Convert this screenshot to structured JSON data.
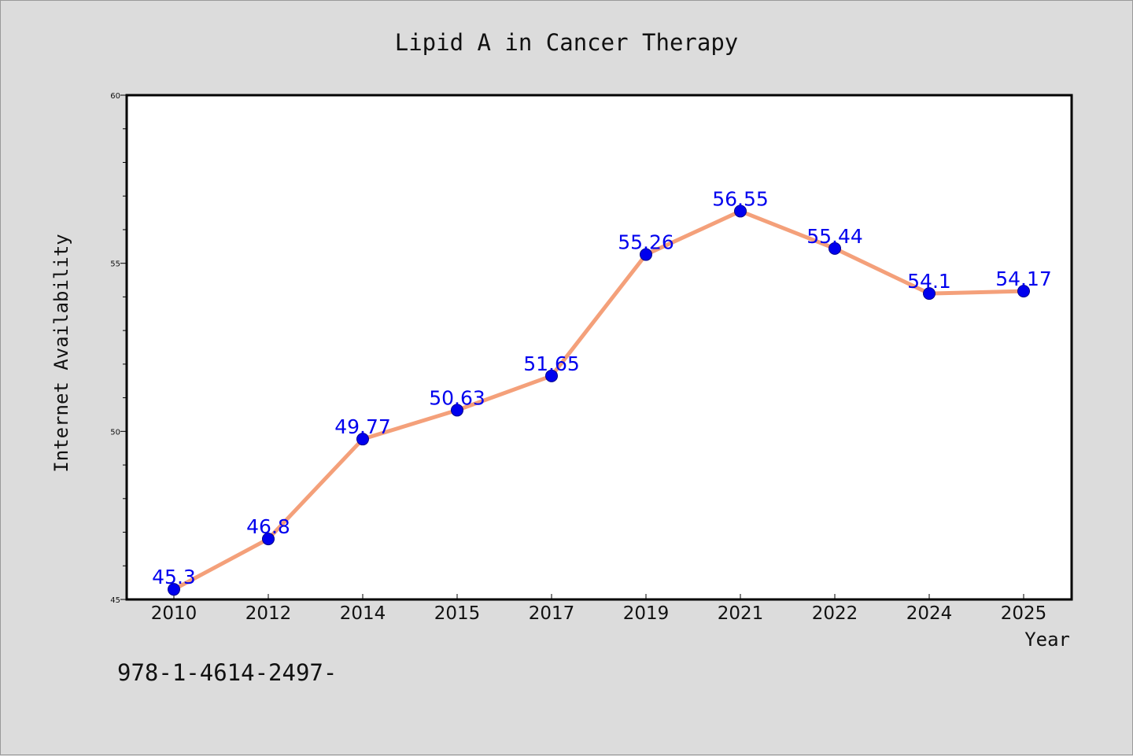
{
  "chart_data": {
    "type": "line",
    "title": "Lipid A in Cancer Therapy",
    "xlabel": "Year",
    "ylabel": "Internet Availability",
    "categories": [
      "2010",
      "2012",
      "2014",
      "2015",
      "2017",
      "2019",
      "2021",
      "2022",
      "2024",
      "2025"
    ],
    "series": [
      {
        "values": [
          45.3,
          46.8,
          49.77,
          50.63,
          51.65,
          55.26,
          56.55,
          55.44,
          54.1,
          54.17
        ],
        "labels": [
          "45.3",
          "46.8",
          "49.77",
          "50.63",
          "51.65",
          "55.26",
          "56.55",
          "55.44",
          "54.1",
          "54.17"
        ],
        "line_color": "#f4a07a",
        "marker_color": "#0000ee"
      }
    ],
    "ylim": [
      45,
      60
    ],
    "yticks": [
      45,
      50,
      55,
      60
    ],
    "ytick_labels": [
      "45",
      "50",
      "55",
      "60"
    ],
    "grid": false
  },
  "footer_text": "978-1-4614-2497-"
}
